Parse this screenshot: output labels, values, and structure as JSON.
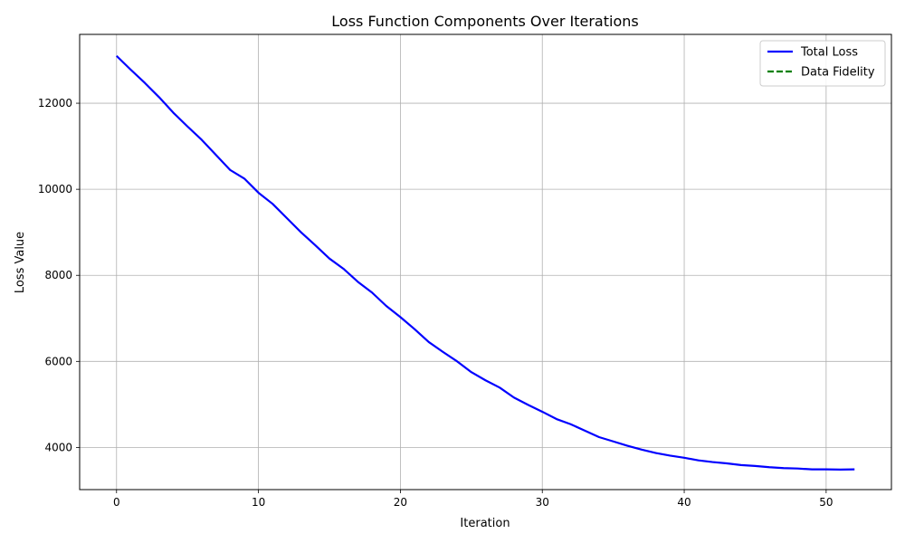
{
  "chart_data": {
    "type": "line",
    "title": "Loss Function Components Over Iterations",
    "xlabel": "Iteration",
    "ylabel": "Loss Value",
    "xlim": [
      -2.6,
      54.6
    ],
    "ylim": [
      3020,
      13600
    ],
    "xticks": [
      0,
      10,
      20,
      30,
      40,
      50
    ],
    "yticks": [
      4000,
      6000,
      8000,
      10000,
      12000
    ],
    "grid": true,
    "legend_position": "upper-right",
    "series": [
      {
        "name": "Total Loss",
        "color": "#0000ff",
        "style": "solid",
        "x": [
          0,
          1,
          2,
          3,
          4,
          5,
          6,
          7,
          8,
          9,
          10,
          11,
          12,
          13,
          14,
          15,
          16,
          17,
          18,
          19,
          20,
          21,
          22,
          23,
          24,
          25,
          26,
          27,
          28,
          29,
          30,
          31,
          32,
          33,
          34,
          35,
          36,
          37,
          38,
          39,
          40,
          41,
          42,
          43,
          44,
          45,
          46,
          47,
          48,
          49,
          50,
          51,
          52
        ],
        "y": [
          13100,
          12780,
          12470,
          12140,
          11780,
          11460,
          11150,
          10800,
          10450,
          10250,
          9920,
          9660,
          9330,
          9000,
          8700,
          8390,
          8150,
          7850,
          7600,
          7290,
          7030,
          6750,
          6450,
          6220,
          6000,
          5750,
          5560,
          5390,
          5160,
          4990,
          4830,
          4660,
          4540,
          4390,
          4240,
          4140,
          4040,
          3950,
          3870,
          3810,
          3760,
          3700,
          3660,
          3630,
          3590,
          3570,
          3540,
          3520,
          3510,
          3490,
          3490,
          3485,
          3490
        ]
      },
      {
        "name": "Data Fidelity",
        "color": "#008000",
        "style": "dashed",
        "x": [],
        "y": []
      }
    ]
  }
}
